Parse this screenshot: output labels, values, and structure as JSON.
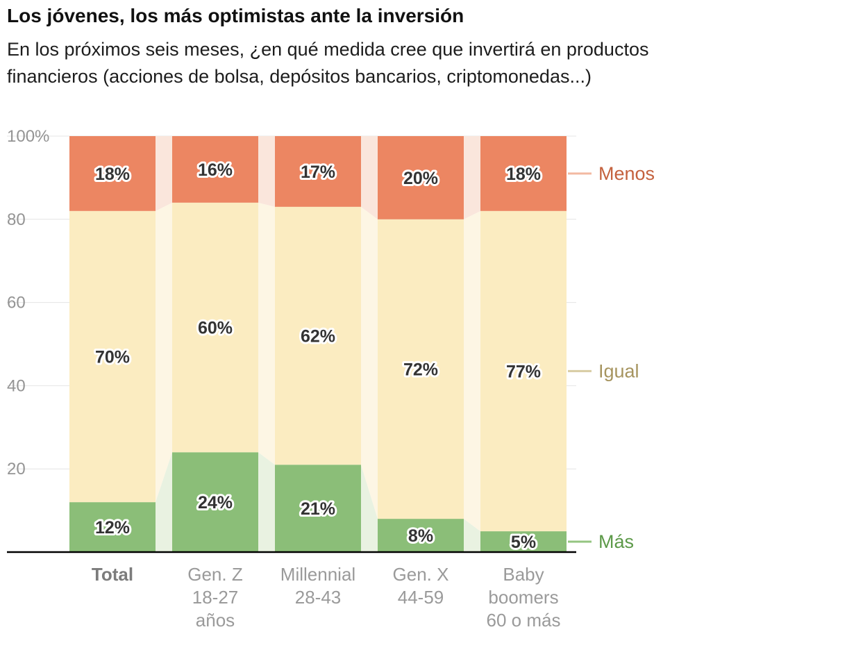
{
  "header": {
    "title": "Los jóvenes, los más optimistas ante la inversión",
    "subtitle_lines": [
      "En los próximos seis meses, ¿en qué medida cree que invertirá en productos",
      "financieros (acciones de bolsa, depósitos bancarios, criptomonedas...)"
    ]
  },
  "chart_data": {
    "type": "bar",
    "variant": "stacked-percentage-with-flow-ribbons",
    "stack_total": 100,
    "value_suffix": "%",
    "categories": [
      {
        "id": "total",
        "label_lines": [
          "Total"
        ],
        "bold": true
      },
      {
        "id": "gen-z",
        "label_lines": [
          "Gen. Z",
          "18-27",
          "años"
        ],
        "bold": false
      },
      {
        "id": "millennial",
        "label_lines": [
          "Millennial",
          "28-43"
        ],
        "bold": false
      },
      {
        "id": "gen-x",
        "label_lines": [
          "Gen. X",
          "44-59"
        ],
        "bold": false
      },
      {
        "id": "baby-boomers",
        "label_lines": [
          "Baby",
          "boomers",
          "60 o más"
        ],
        "bold": false
      }
    ],
    "series": [
      {
        "id": "menos",
        "name": "Menos",
        "values": [
          18,
          16,
          17,
          20,
          18
        ],
        "color": "#EC8662",
        "light_color": "#FAE6DC",
        "label_color": "#C4613D",
        "tick_color": "#F3B9A2"
      },
      {
        "id": "igual",
        "name": "Igual",
        "values": [
          70,
          60,
          62,
          72,
          77
        ],
        "color": "#FBECC1",
        "light_color": "#FDF6E4",
        "label_color": "#A6945F",
        "tick_color": "#D8CCA3"
      },
      {
        "id": "mas",
        "name": "Más",
        "values": [
          12,
          24,
          21,
          8,
          5
        ],
        "color": "#8BBE78",
        "light_color": "#E9F2E1",
        "label_color": "#5C9948",
        "tick_color": "#94C581"
      }
    ],
    "y_ticks": [
      {
        "value": 100,
        "label": "100%"
      },
      {
        "value": 80,
        "label": "80"
      },
      {
        "value": 60,
        "label": "60"
      },
      {
        "value": 40,
        "label": "40"
      },
      {
        "value": 20,
        "label": "20"
      }
    ],
    "ylim": [
      0,
      100
    ],
    "grid": true,
    "legend_position": "right",
    "colors": {
      "grid": "#e4e4e4",
      "axis_line": "#000000"
    }
  }
}
